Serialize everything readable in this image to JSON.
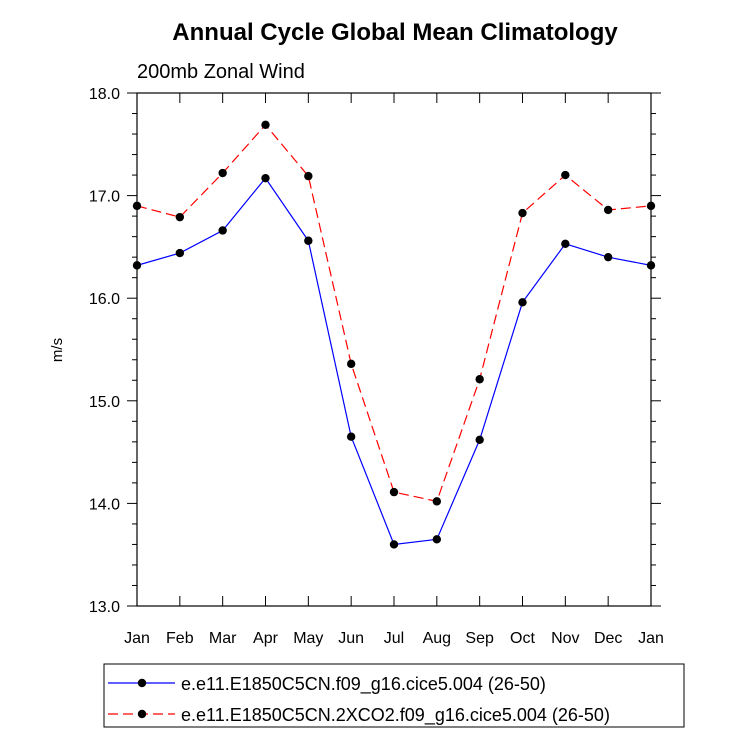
{
  "chart_data": {
    "type": "line",
    "title": "Annual Cycle Global Mean Climatology",
    "subtitle": "200mb Zonal Wind",
    "xlabel": "",
    "ylabel": "m/s",
    "categories": [
      "Jan",
      "Feb",
      "Mar",
      "Apr",
      "May",
      "Jun",
      "Jul",
      "Aug",
      "Sep",
      "Oct",
      "Nov",
      "Dec",
      "Jan"
    ],
    "ylim": [
      13.0,
      18.0
    ],
    "yticks": [
      "13.0",
      "14.0",
      "15.0",
      "16.0",
      "17.0",
      "18.0"
    ],
    "grid": false,
    "legend_position": "bottom",
    "series": [
      {
        "name": "e.e11.E1850C5CN.f09_g16.cice5.004 (26-50)",
        "color": "#0000ff",
        "dash": "solid",
        "values": [
          16.32,
          16.44,
          16.66,
          17.17,
          16.56,
          14.65,
          13.6,
          13.65,
          14.62,
          15.96,
          16.53,
          16.4,
          16.32
        ]
      },
      {
        "name": "e.e11.E1850C5CN.2XCO2.f09_g16.cice5.004 (26-50)",
        "color": "#ff0000",
        "dash": "dashed",
        "values": [
          16.9,
          16.79,
          17.22,
          17.69,
          17.19,
          15.36,
          14.11,
          14.02,
          15.21,
          16.83,
          17.2,
          16.86,
          16.9
        ]
      }
    ]
  }
}
